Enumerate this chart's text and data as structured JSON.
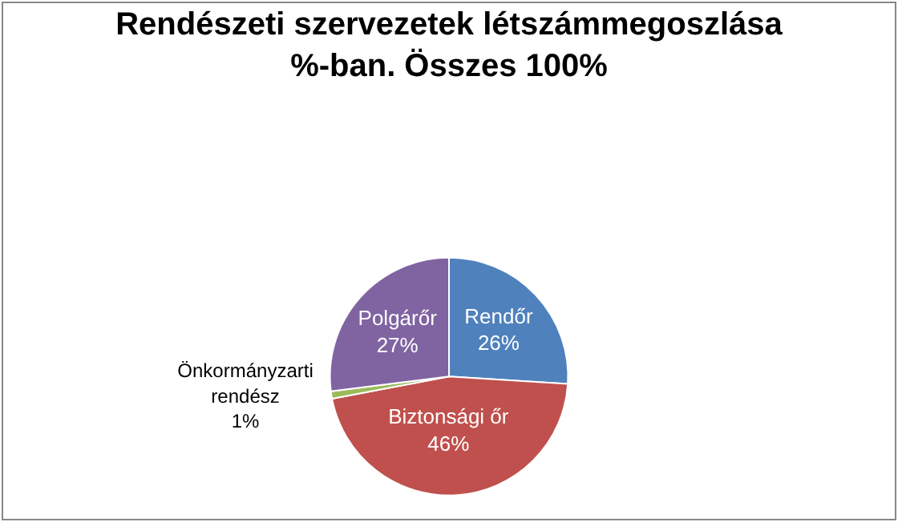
{
  "chart_data": {
    "type": "pie",
    "title": "Rendészeti szervezetek létszámmegoszlása %-ban. Összes 100%",
    "categories": [
      "Rendőr",
      "Biztonsági őr",
      "Önkormányzarti rendész",
      "Polgárőr"
    ],
    "values": [
      26,
      46,
      1,
      27
    ],
    "colors": [
      "#4f81bd",
      "#c0504d",
      "#9bbb59",
      "#8064a2"
    ],
    "value_labels": [
      "26%",
      "46%",
      "1%",
      "27%"
    ],
    "legend": false
  }
}
